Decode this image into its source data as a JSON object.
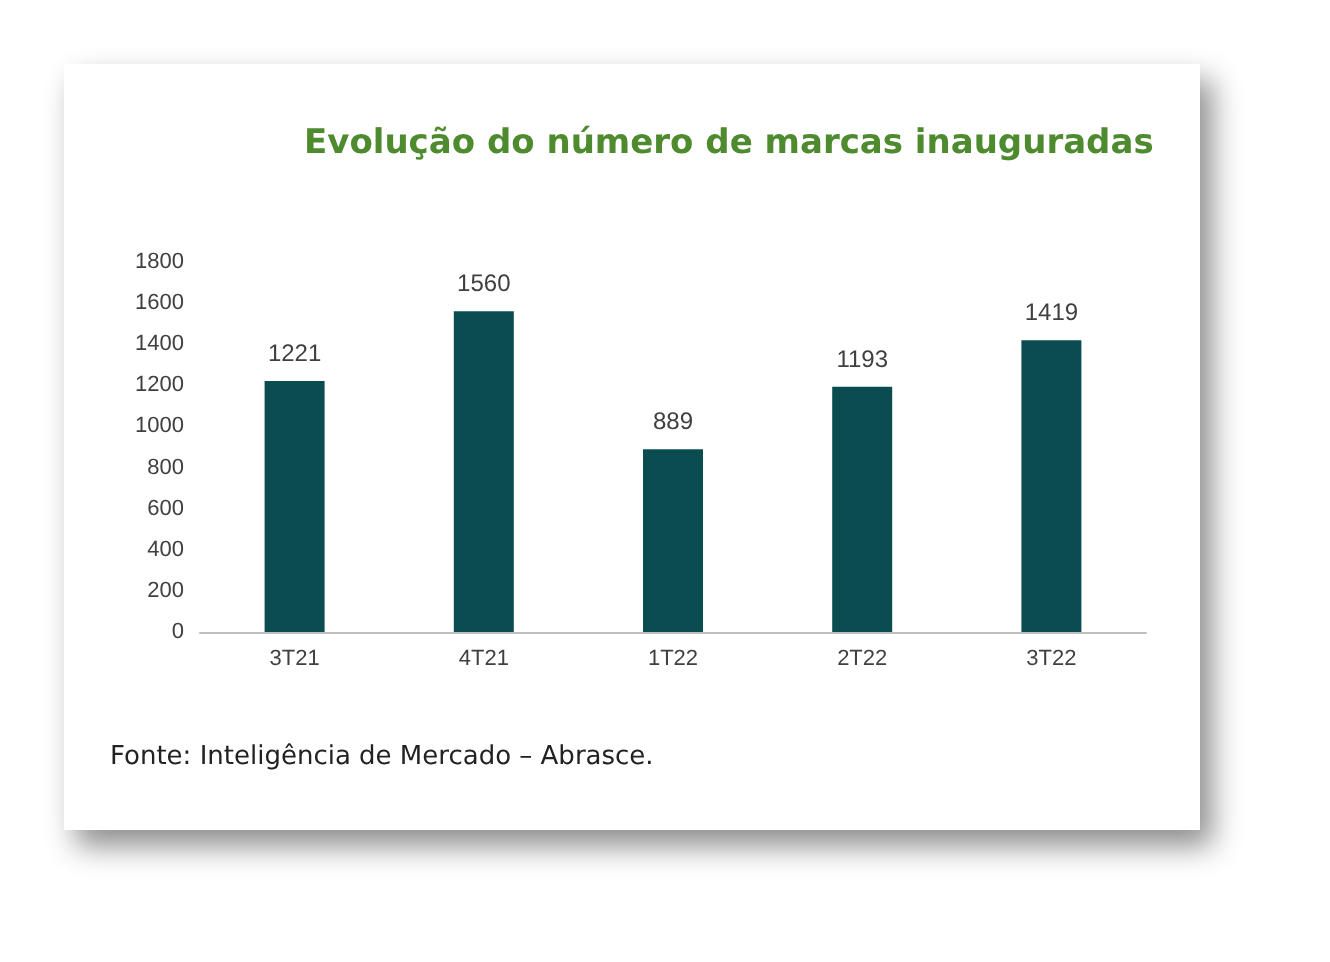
{
  "chart_data": {
    "type": "bar",
    "title": "Evolução do número de marcas inauguradas",
    "categories": [
      "3T21",
      "4T21",
      "1T22",
      "2T22",
      "3T22"
    ],
    "values": [
      1221,
      1560,
      889,
      1193,
      1419
    ],
    "color": "#0b4c50",
    "ylim": [
      0,
      1800
    ],
    "yticks": [
      0,
      200,
      400,
      600,
      800,
      1000,
      1200,
      1400,
      1600,
      1800
    ],
    "grid": false,
    "data_labels": true,
    "annotations": [
      "Fonte: Inteligência de Mercado – Abrasce."
    ]
  }
}
